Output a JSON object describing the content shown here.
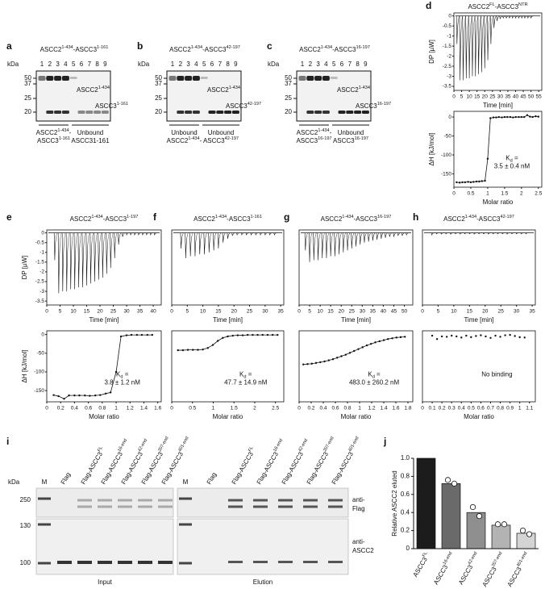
{
  "gels": [
    {
      "letter": "a",
      "title": [
        "ASCC2",
        "1-434",
        "-ASCC3",
        "1-161"
      ],
      "kda": "kDa",
      "lanes": [
        "1",
        "2",
        "3",
        "4",
        "5",
        "6",
        "7",
        "8",
        "9"
      ],
      "markers": [
        "50",
        "37",
        "25",
        "20"
      ],
      "band_labels": [
        [
          "ASCC2",
          "1-434"
        ],
        [
          "ASCC3",
          "1-161"
        ]
      ],
      "groups": [
        [
          [
            "ASCC2",
            "1-434",
            "-"
          ],
          [
            "ASCC3",
            "1-161"
          ]
        ],
        [
          [
            "Unbound"
          ],
          [
            "ASCC31-161"
          ]
        ]
      ]
    },
    {
      "letter": "b",
      "title": [
        "ASCC2",
        "1-434",
        "-ASCC3",
        "42-197"
      ],
      "kda": "kDa",
      "lanes": [
        "1",
        "2",
        "3",
        "4",
        "5",
        "6",
        "7",
        "8",
        "9"
      ],
      "markers": [
        "50",
        "37",
        "25",
        "20"
      ],
      "band_labels": [
        [
          "ASCC2",
          "1-434"
        ],
        [
          "ASCC3",
          "42-197"
        ]
      ],
      "groups": [
        [
          [
            "Unbound"
          ],
          [
            "ASCC2",
            "1-434",
            "-"
          ]
        ],
        [
          [
            "Unbound"
          ],
          [
            "ASCC3",
            "42-197"
          ]
        ]
      ]
    },
    {
      "letter": "c",
      "title": [
        "ASCC2",
        "1-434",
        "-ASCC3",
        "16-197"
      ],
      "kda": "kDa",
      "lanes": [
        "1",
        "2",
        "3",
        "4",
        "5",
        "6",
        "7",
        "8",
        "9"
      ],
      "markers": [
        "50",
        "37",
        "25",
        "20"
      ],
      "band_labels": [
        [
          "ASCC2",
          "1-434"
        ],
        [
          "ASCC3",
          "16-197"
        ]
      ],
      "groups": [
        [
          [
            "ASCC2",
            "1-434",
            "-"
          ],
          [
            "ASCC3",
            "16-197"
          ]
        ],
        [
          [
            "Unbound"
          ],
          [
            "ASCC3",
            "16-197"
          ]
        ]
      ]
    }
  ],
  "blot": {
    "letter": "i",
    "kda": "kDa",
    "markers": [
      "250",
      "130",
      "100"
    ],
    "lanes": [
      [
        "M"
      ],
      [
        "Flag"
      ],
      [
        "Flag-ASCC3",
        "FL"
      ],
      [
        "Flag-ASCC3",
        "16-end"
      ],
      [
        "Flag-ASCC3",
        "42-end"
      ],
      [
        "Flag-ASCC3",
        "207-end"
      ],
      [
        "Flag-ASCC3",
        "401-end"
      ]
    ],
    "antibodies": [
      [
        "anti-",
        "Flag"
      ],
      [
        "anti-",
        "ASCC2"
      ]
    ],
    "panels": [
      "Input",
      "Elution"
    ]
  },
  "chart_data": [
    {
      "type": "itc",
      "letter": "d",
      "title": [
        "ASCC2",
        "FL",
        "-ASCC3",
        "NTR"
      ],
      "thermogram": {
        "x": [
          2,
          4,
          6,
          8,
          10,
          12,
          14,
          16,
          18,
          20,
          22,
          24,
          26,
          28,
          30,
          32,
          34,
          36,
          38,
          40,
          42,
          44,
          46,
          48,
          50
        ],
        "values": [
          -1.4,
          -3.2,
          -3.2,
          -3.1,
          -3.1,
          -3.0,
          -3.0,
          -2.9,
          -2.8,
          -2.6,
          -2.2,
          -1.4,
          -0.6,
          -0.25,
          -0.15,
          -0.1,
          -0.1,
          -0.1,
          -0.1,
          -0.1,
          -0.1,
          -0.1,
          -0.1,
          -0.1,
          -0.1
        ],
        "xlim": [
          0,
          57
        ],
        "xticks": [
          0,
          5,
          10,
          15,
          20,
          25,
          30,
          35,
          40,
          45,
          50,
          55
        ],
        "ylim": [
          -3.7,
          0.15
        ],
        "yticks": [
          0,
          -0.5,
          -1,
          -1.5,
          -2,
          -2.5,
          -3,
          -3.5
        ],
        "xlabel": "Time [min]",
        "ylabel": "DP [µW]"
      },
      "binding": {
        "x": [
          0.08,
          0.17,
          0.25,
          0.33,
          0.42,
          0.5,
          0.58,
          0.67,
          0.75,
          0.83,
          0.92,
          1.0,
          1.08,
          1.17,
          1.25,
          1.33,
          1.42,
          1.5,
          1.58,
          1.67,
          1.75,
          1.83,
          1.92,
          2.0,
          2.08,
          2.17,
          2.25,
          2.33,
          2.42,
          2.5
        ],
        "values": [
          -172,
          -173,
          -172,
          -172,
          -171,
          -172,
          -171,
          -170,
          -170,
          -169,
          -168,
          -110,
          -3,
          -1,
          -1,
          0,
          -1,
          0,
          0,
          0,
          -1,
          0,
          0,
          0,
          0,
          5,
          1,
          0,
          2,
          1
        ],
        "xlim": [
          0,
          2.6
        ],
        "xticks": [
          0,
          0.5,
          1,
          1.5,
          2,
          2.5
        ],
        "ylim": [
          -185,
          15
        ],
        "yticks": [
          0,
          -50,
          -100,
          -150
        ],
        "xlabel": "Molar ratio",
        "ylabel": "ΔH [kJ/mol]",
        "line": true,
        "annotation": [
          [
            "K",
            "d",
            " ="
          ],
          [
            "3.5 ± 0.4 nM"
          ]
        ]
      }
    },
    {
      "type": "itc",
      "letter": "e",
      "title": [
        "ASCC2",
        "1-434",
        "-ASCC3",
        "1-197"
      ],
      "thermogram": {
        "x": [
          3,
          4.5,
          6,
          7.5,
          9,
          10.5,
          12,
          13.5,
          15,
          16.5,
          18,
          19.5,
          21,
          22.5,
          24,
          25.5,
          27,
          28.5,
          30,
          31.5,
          33,
          34.5,
          36,
          37.5,
          39,
          40.5
        ],
        "values": [
          -1.4,
          -3.1,
          -3.0,
          -3.0,
          -2.9,
          -2.9,
          -2.8,
          -2.8,
          -2.7,
          -2.6,
          -2.5,
          -2.4,
          -2.3,
          -2.1,
          -1.8,
          -1.3,
          -0.6,
          -0.2,
          -0.1,
          -0.1,
          -0.1,
          -0.1,
          -0.1,
          -0.1,
          -0.1,
          -0.1
        ],
        "xlim": [
          0,
          43
        ],
        "xticks": [
          0,
          5,
          10,
          15,
          20,
          25,
          30,
          35,
          40
        ],
        "ylim": [
          -3.7,
          0.15
        ],
        "yticks": [
          0,
          -0.5,
          -1,
          -1.5,
          -2,
          -2.5,
          -3,
          -3.5
        ],
        "xlabel": "Time [min]",
        "ylabel": "DP [µW]"
      },
      "binding": {
        "x": [
          0.1,
          0.17,
          0.25,
          0.32,
          0.4,
          0.47,
          0.55,
          0.62,
          0.7,
          0.77,
          0.85,
          0.92,
          1.0,
          1.07,
          1.15,
          1.22,
          1.3,
          1.37,
          1.45,
          1.52
        ],
        "values": [
          -162,
          -165,
          -172,
          -163,
          -163,
          -163,
          -163,
          -164,
          -163,
          -162,
          -158,
          -155,
          -100,
          -5,
          -2,
          -1,
          -1,
          -1,
          -1,
          -1
        ],
        "xlim": [
          0,
          1.65
        ],
        "xticks": [
          0,
          0.2,
          0.4,
          0.6,
          0.8,
          1,
          1.2,
          1.4,
          1.6
        ],
        "ylim": [
          -180,
          10
        ],
        "yticks": [
          0,
          -50,
          -100,
          -150
        ],
        "xlabel": "Molar ratio",
        "ylabel": "ΔH [kJ/mol]",
        "line": true,
        "annotation": [
          [
            "K",
            "d",
            " ="
          ],
          [
            "3.8 ± 1.2 nM"
          ]
        ]
      }
    },
    {
      "type": "itc",
      "letter": "f",
      "title": [
        "ASCC2",
        "1-434",
        "-ASCC3",
        "1-161"
      ],
      "thermogram": {
        "x": [
          3,
          4.5,
          6,
          7.5,
          9,
          10.5,
          12,
          13.5,
          15,
          16.5,
          18,
          19.5,
          21,
          22.5,
          24,
          25.5,
          27,
          28.5,
          30,
          31.5,
          33
        ],
        "values": [
          -0.8,
          -1.3,
          -1.2,
          -1.2,
          -1.1,
          -1.1,
          -1.0,
          -0.9,
          -0.8,
          -0.5,
          -0.3,
          -0.15,
          -0.1,
          -0.1,
          -0.1,
          -0.1,
          -0.1,
          -0.1,
          -0.1,
          -0.1,
          -0.1
        ],
        "xlim": [
          0,
          36
        ],
        "xticks": [
          0,
          5,
          10,
          15,
          20,
          25,
          30,
          35
        ],
        "ylim": [
          -3.7,
          0.15
        ],
        "xlabel": "Time [min]"
      },
      "binding": {
        "x": [
          0.15,
          0.27,
          0.39,
          0.51,
          0.63,
          0.75,
          0.87,
          0.99,
          1.11,
          1.23,
          1.35,
          1.47,
          1.59,
          1.71,
          1.83,
          1.95,
          2.07,
          2.19,
          2.31,
          2.43,
          2.55
        ],
        "values": [
          -42,
          -42,
          -41,
          -41,
          -41,
          -40,
          -36,
          -28,
          -17,
          -9,
          -5,
          -3,
          -2,
          -2,
          -1,
          -1,
          -1,
          -1,
          -1,
          -1,
          -1
        ],
        "xlim": [
          0,
          2.7
        ],
        "xticks": [
          0,
          0.5,
          1,
          1.5,
          2,
          2.5
        ],
        "ylim": [
          -180,
          10
        ],
        "xlabel": "Molar ratio",
        "line": true,
        "annotation": [
          [
            "K",
            "d",
            " ="
          ],
          [
            "47.7 ± 14.9 nM"
          ]
        ]
      }
    },
    {
      "type": "itc",
      "letter": "g",
      "title": [
        "ASCC2",
        "1-434",
        "-ASCC3",
        "16-197"
      ],
      "thermogram": {
        "x": [
          3,
          5,
          7,
          9,
          11,
          13,
          15,
          17,
          19,
          21,
          23,
          25,
          27,
          29,
          31,
          33,
          35,
          37,
          39,
          41,
          43,
          45,
          47,
          49,
          51
        ],
        "values": [
          -0.9,
          -1.5,
          -1.4,
          -1.4,
          -1.3,
          -1.3,
          -1.2,
          -1.2,
          -1.1,
          -1.0,
          -0.9,
          -0.8,
          -0.7,
          -0.6,
          -0.5,
          -0.45,
          -0.4,
          -0.35,
          -0.3,
          -0.25,
          -0.2,
          -0.2,
          -0.15,
          -0.15,
          -0.1
        ],
        "xlim": [
          0,
          54
        ],
        "xticks": [
          0,
          5,
          10,
          15,
          20,
          25,
          30,
          35,
          40,
          45,
          50
        ],
        "ylim": [
          -3.7,
          0.15
        ],
        "xlabel": "Time [min]"
      },
      "binding": {
        "x": [
          0.07,
          0.14,
          0.21,
          0.28,
          0.35,
          0.42,
          0.49,
          0.56,
          0.63,
          0.7,
          0.77,
          0.84,
          0.91,
          0.98,
          1.05,
          1.12,
          1.19,
          1.26,
          1.33,
          1.4,
          1.47,
          1.54,
          1.61,
          1.68,
          1.75
        ],
        "values": [
          -80,
          -79,
          -78,
          -76,
          -74,
          -72,
          -69,
          -66,
          -62,
          -58,
          -54,
          -49,
          -44,
          -39,
          -34,
          -29,
          -25,
          -21,
          -18,
          -15,
          -12,
          -10,
          -8,
          -7,
          -6
        ],
        "xlim": [
          0,
          1.88
        ],
        "xticks": [
          0,
          0.2,
          0.4,
          0.6,
          0.8,
          1,
          1.2,
          1.4,
          1.6,
          1.8
        ],
        "ylim": [
          -180,
          10
        ],
        "xlabel": "Molar ratio",
        "line": true,
        "annotation": [
          [
            "K",
            "d",
            " ="
          ],
          [
            "483.0 ± 260.2 nM"
          ]
        ]
      }
    },
    {
      "type": "itc",
      "letter": "h",
      "title": [
        "ASCC2",
        "1-434",
        "-ASCC3",
        "42-197"
      ],
      "thermogram": {
        "x": [
          3,
          4.5,
          6,
          7.5,
          9,
          10.5,
          12,
          13.5,
          15,
          16.5,
          18,
          19.5,
          21,
          22.5,
          24,
          25.5,
          27,
          28.5,
          30,
          31.5,
          33
        ],
        "values": [
          -0.1,
          -0.05,
          -0.06,
          -0.05,
          -0.07,
          -0.05,
          -0.06,
          -0.05,
          -0.05,
          -0.06,
          -0.05,
          -0.05,
          -0.06,
          -0.05,
          -0.05,
          -0.05,
          -0.06,
          -0.05,
          -0.05,
          -0.05,
          -0.05
        ],
        "xlim": [
          0,
          36
        ],
        "xticks": [
          0,
          5,
          10,
          15,
          20,
          25,
          30,
          35
        ],
        "ylim": [
          -3.7,
          0.15
        ],
        "xlabel": "Time [min]"
      },
      "binding": {
        "x": [
          0.1,
          0.15,
          0.2,
          0.25,
          0.3,
          0.35,
          0.4,
          0.45,
          0.5,
          0.55,
          0.6,
          0.65,
          0.7,
          0.75,
          0.8,
          0.85,
          0.9,
          0.95,
          1.0,
          1.05
        ],
        "values": [
          -3,
          -12,
          -5,
          -6,
          -3,
          -5,
          -8,
          -3,
          -7,
          -4,
          -2,
          -5,
          -9,
          -3,
          -6,
          -2,
          -1,
          -4,
          -7,
          -8
        ],
        "xlim": [
          0,
          1.16
        ],
        "xticks": [
          0,
          0.1,
          0.2,
          0.3,
          0.4,
          0.5,
          0.6,
          0.7,
          0.8,
          0.9,
          1,
          1.1
        ],
        "ylim": [
          -180,
          10
        ],
        "xlabel": "Molar ratio",
        "line": false,
        "annotation": [
          [
            "No binding"
          ]
        ]
      }
    },
    {
      "type": "bar",
      "letter": "j",
      "categories": [
        [
          "ASCC3",
          "FL"
        ],
        [
          "ASCC3",
          "16-end"
        ],
        [
          "ASCC3",
          "42-end"
        ],
        [
          "ASCC3",
          "207-end"
        ],
        [
          "ASCC3",
          "401-end"
        ]
      ],
      "values": [
        1.0,
        0.72,
        0.4,
        0.26,
        0.17
      ],
      "colors": [
        "#1c1c1c",
        "#6a6a6a",
        "#8f8f8f",
        "#b3b3b3",
        "#d4d4d4"
      ],
      "replicates": [
        [],
        [
          0.76,
          0.72
        ],
        [
          0.46,
          0.36
        ],
        [
          0.27,
          0.27
        ],
        [
          0.2,
          0.16
        ]
      ],
      "ylim": [
        0,
        1
      ],
      "yticks": [
        0,
        0.2,
        0.4,
        0.6,
        0.8,
        {
          "value": 1,
          "label": "1.0"
        }
      ],
      "ylabel": "Relative ASCC2 eluted"
    }
  ]
}
